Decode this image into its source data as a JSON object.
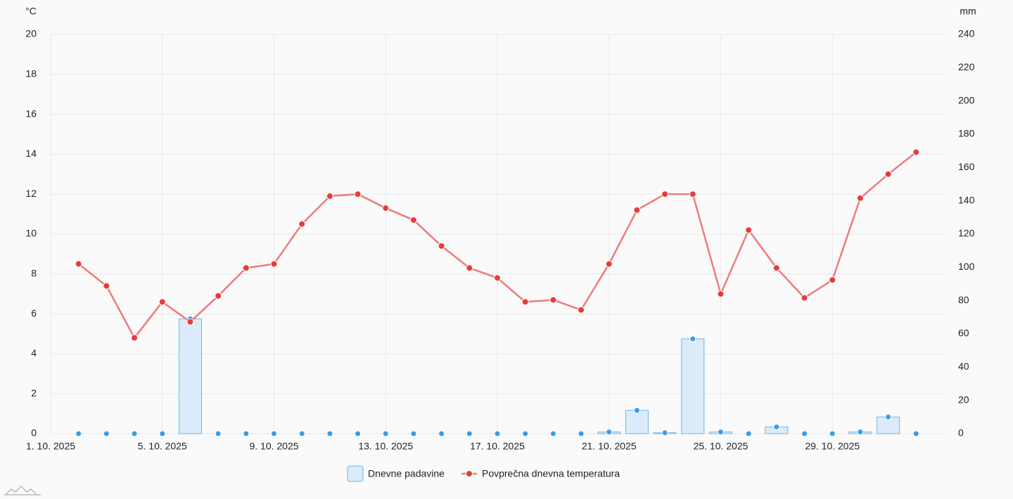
{
  "chart_data": {
    "type": "combo",
    "y_unit": "°C",
    "y2_unit": "mm",
    "x": [
      2,
      3,
      4,
      5,
      6,
      7,
      8,
      9,
      10,
      11,
      12,
      13,
      14,
      15,
      16,
      17,
      18,
      19,
      20,
      21,
      22,
      23,
      24,
      25,
      26,
      27,
      28,
      29,
      30,
      31,
      32
    ],
    "xlim": [
      1,
      33
    ],
    "xticks": [
      {
        "value": 1,
        "label": "1. 10. 2025"
      },
      {
        "value": 5,
        "label": "5. 10. 2025"
      },
      {
        "value": 9,
        "label": "9. 10. 2025"
      },
      {
        "value": 13,
        "label": "13. 10. 2025"
      },
      {
        "value": 17,
        "label": "17. 10. 2025"
      },
      {
        "value": 21,
        "label": "21. 10. 2025"
      },
      {
        "value": 25,
        "label": "25. 10. 2025"
      },
      {
        "value": 29,
        "label": "29. 10. 2025"
      }
    ],
    "ylim": [
      0,
      20
    ],
    "yticks": [
      0,
      2,
      4,
      6,
      8,
      10,
      12,
      14,
      16,
      18,
      20
    ],
    "y2lim": [
      0,
      240
    ],
    "y2ticks": [
      0,
      20,
      40,
      60,
      80,
      100,
      120,
      140,
      160,
      180,
      200,
      220,
      240
    ],
    "grid": true,
    "legend": "bottom",
    "series": [
      {
        "name": "Dnevne padavine",
        "type": "bar",
        "axis": "y2",
        "color": "#6cb7e8",
        "values": [
          0,
          0,
          0,
          0,
          69,
          0,
          0,
          0,
          0,
          0,
          0,
          0,
          0,
          0,
          0,
          0,
          0,
          0,
          0,
          1,
          14,
          0.5,
          57,
          1,
          0,
          4,
          0,
          0,
          1,
          10,
          0
        ]
      },
      {
        "name": "Povprečna dnevna temperatura",
        "type": "line",
        "color": "#f07a7a",
        "values": [
          8.5,
          7.4,
          4.8,
          6.6,
          5.6,
          6.9,
          8.3,
          8.5,
          10.5,
          11.9,
          12.0,
          11.3,
          10.7,
          9.4,
          8.3,
          7.8,
          6.6,
          6.7,
          6.2,
          8.5,
          11.2,
          12.0,
          12.0,
          7.0,
          10.2,
          8.3,
          6.8,
          7.7,
          11.8,
          13.0,
          14.1
        ]
      }
    ]
  }
}
